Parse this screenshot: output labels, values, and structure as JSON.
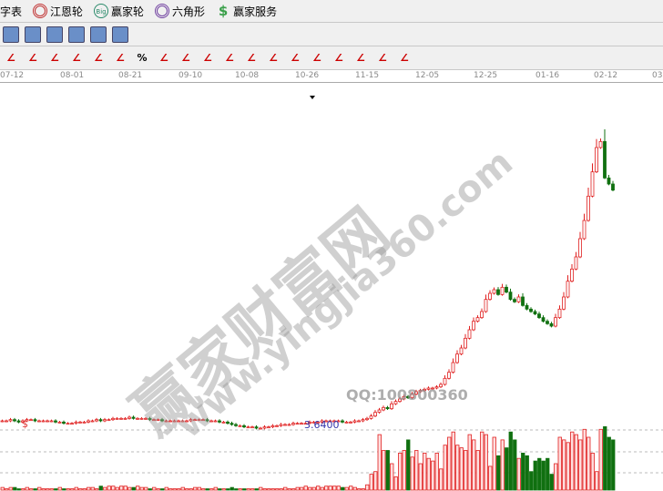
{
  "menu": {
    "items": [
      {
        "label": "字表",
        "icon": ""
      },
      {
        "label": "江恩轮",
        "icon": "target-icon",
        "color": "#c03030"
      },
      {
        "label": "赢家轮",
        "icon": "big-wheel-icon",
        "color": "#2a8a6a"
      },
      {
        "label": "六角形",
        "icon": "hexagon-icon",
        "color": "#7040a0"
      },
      {
        "label": "赢家服务",
        "icon": "dollar-icon",
        "color": "#3aa04a"
      }
    ]
  },
  "toolbar1": {
    "icons": [
      "calendar-icon",
      "calculator-icon",
      "report-icon",
      "save-icon",
      "network-icon",
      "print-icon"
    ]
  },
  "toolbar2": {
    "icons": [
      "up-arrow-icon",
      "grid-icon",
      "grid2-icon",
      "fan-lines-icon",
      "bars-icon",
      "percent-line-icon",
      "%",
      "percent-lines-icon",
      "gold-circle-icon",
      "gold-lines-icon",
      "pen-icon",
      "wave-icon",
      "gold-icon",
      "j-angle-icon",
      "f-angle-icon",
      "gold-angle-icon",
      "angle-icon",
      "angle2-icon",
      "angle3-icon"
    ],
    "percent": "%"
  },
  "date_axis": [
    "07-12",
    "08-01",
    "08-21",
    "09-10",
    "10-08",
    "10-26",
    "11-15",
    "12-05",
    "12-25",
    "01-16",
    "02-12",
    "03"
  ],
  "price_label": "3.6400",
  "marker": "$",
  "watermark": {
    "cn": "赢家财富网",
    "url": "www.yingjia360.com",
    "qq": "QQ:100800360"
  },
  "colors": {
    "up": "#e02020",
    "down": "#107010"
  },
  "chart_data": {
    "type": "candlestick",
    "closes": [
      3.7,
      3.7,
      3.71,
      3.7,
      3.69,
      3.7,
      3.71,
      3.71,
      3.7,
      3.7,
      3.7,
      3.7,
      3.7,
      3.69,
      3.69,
      3.68,
      3.68,
      3.68,
      3.69,
      3.69,
      3.69,
      3.7,
      3.7,
      3.71,
      3.7,
      3.71,
      3.71,
      3.72,
      3.72,
      3.72,
      3.72,
      3.73,
      3.72,
      3.72,
      3.72,
      3.72,
      3.71,
      3.71,
      3.71,
      3.7,
      3.7,
      3.7,
      3.7,
      3.7,
      3.7,
      3.7,
      3.71,
      3.71,
      3.71,
      3.71,
      3.7,
      3.7,
      3.7,
      3.69,
      3.69,
      3.68,
      3.67,
      3.66,
      3.66,
      3.65,
      3.65,
      3.65,
      3.64,
      3.64,
      3.65,
      3.65,
      3.66,
      3.66,
      3.67,
      3.67,
      3.67,
      3.68,
      3.68,
      3.68,
      3.68,
      3.69,
      3.69,
      3.69,
      3.7,
      3.7,
      3.7,
      3.7,
      3.7,
      3.69,
      3.69,
      3.69,
      3.7,
      3.7,
      3.71,
      3.72,
      3.74,
      3.77,
      3.79,
      3.81,
      3.8,
      3.84,
      3.86,
      3.88,
      3.9,
      3.89,
      3.92,
      3.94,
      3.95,
      3.96,
      3.97,
      3.97,
      3.98,
      4.0,
      4.05,
      4.1,
      4.18,
      4.25,
      4.3,
      4.38,
      4.45,
      4.52,
      4.55,
      4.6,
      4.7,
      4.75,
      4.78,
      4.74,
      4.8,
      4.76,
      4.7,
      4.68,
      4.72,
      4.65,
      4.62,
      4.6,
      4.58,
      4.55,
      4.52,
      4.5,
      4.48,
      4.55,
      4.62,
      4.72,
      4.85,
      4.95,
      5.05,
      5.2,
      5.35,
      5.55,
      5.75,
      5.95,
      6.0,
      5.7,
      5.65,
      5.6
    ],
    "volumes": [
      2,
      1,
      2,
      2,
      1,
      1,
      2,
      1,
      1,
      2,
      1,
      1,
      1,
      1,
      2,
      1,
      1,
      1,
      2,
      1,
      1,
      2,
      2,
      1,
      3,
      2,
      3,
      3,
      2,
      3,
      3,
      2,
      2,
      3,
      2,
      2,
      1,
      2,
      1,
      1,
      2,
      1,
      1,
      1,
      2,
      1,
      1,
      2,
      2,
      1,
      1,
      1,
      2,
      1,
      1,
      1,
      2,
      1,
      1,
      1,
      1,
      1,
      1,
      2,
      1,
      1,
      1,
      1,
      1,
      2,
      1,
      1,
      2,
      2,
      3,
      2,
      2,
      3,
      2,
      3,
      3,
      3,
      3,
      2,
      2,
      3,
      2,
      1,
      1,
      4,
      12,
      14,
      42,
      30,
      30,
      20,
      10,
      28,
      30,
      38,
      25,
      30,
      20,
      28,
      24,
      22,
      28,
      16,
      34,
      40,
      44,
      34,
      32,
      30,
      42,
      38,
      30,
      44,
      42,
      18,
      40,
      26,
      38,
      32,
      44,
      38,
      24,
      28,
      26,
      14,
      22,
      24,
      22,
      24,
      12,
      20,
      40,
      38,
      36,
      44,
      42,
      38,
      46,
      40,
      28,
      14,
      46,
      48,
      40,
      38
    ]
  }
}
